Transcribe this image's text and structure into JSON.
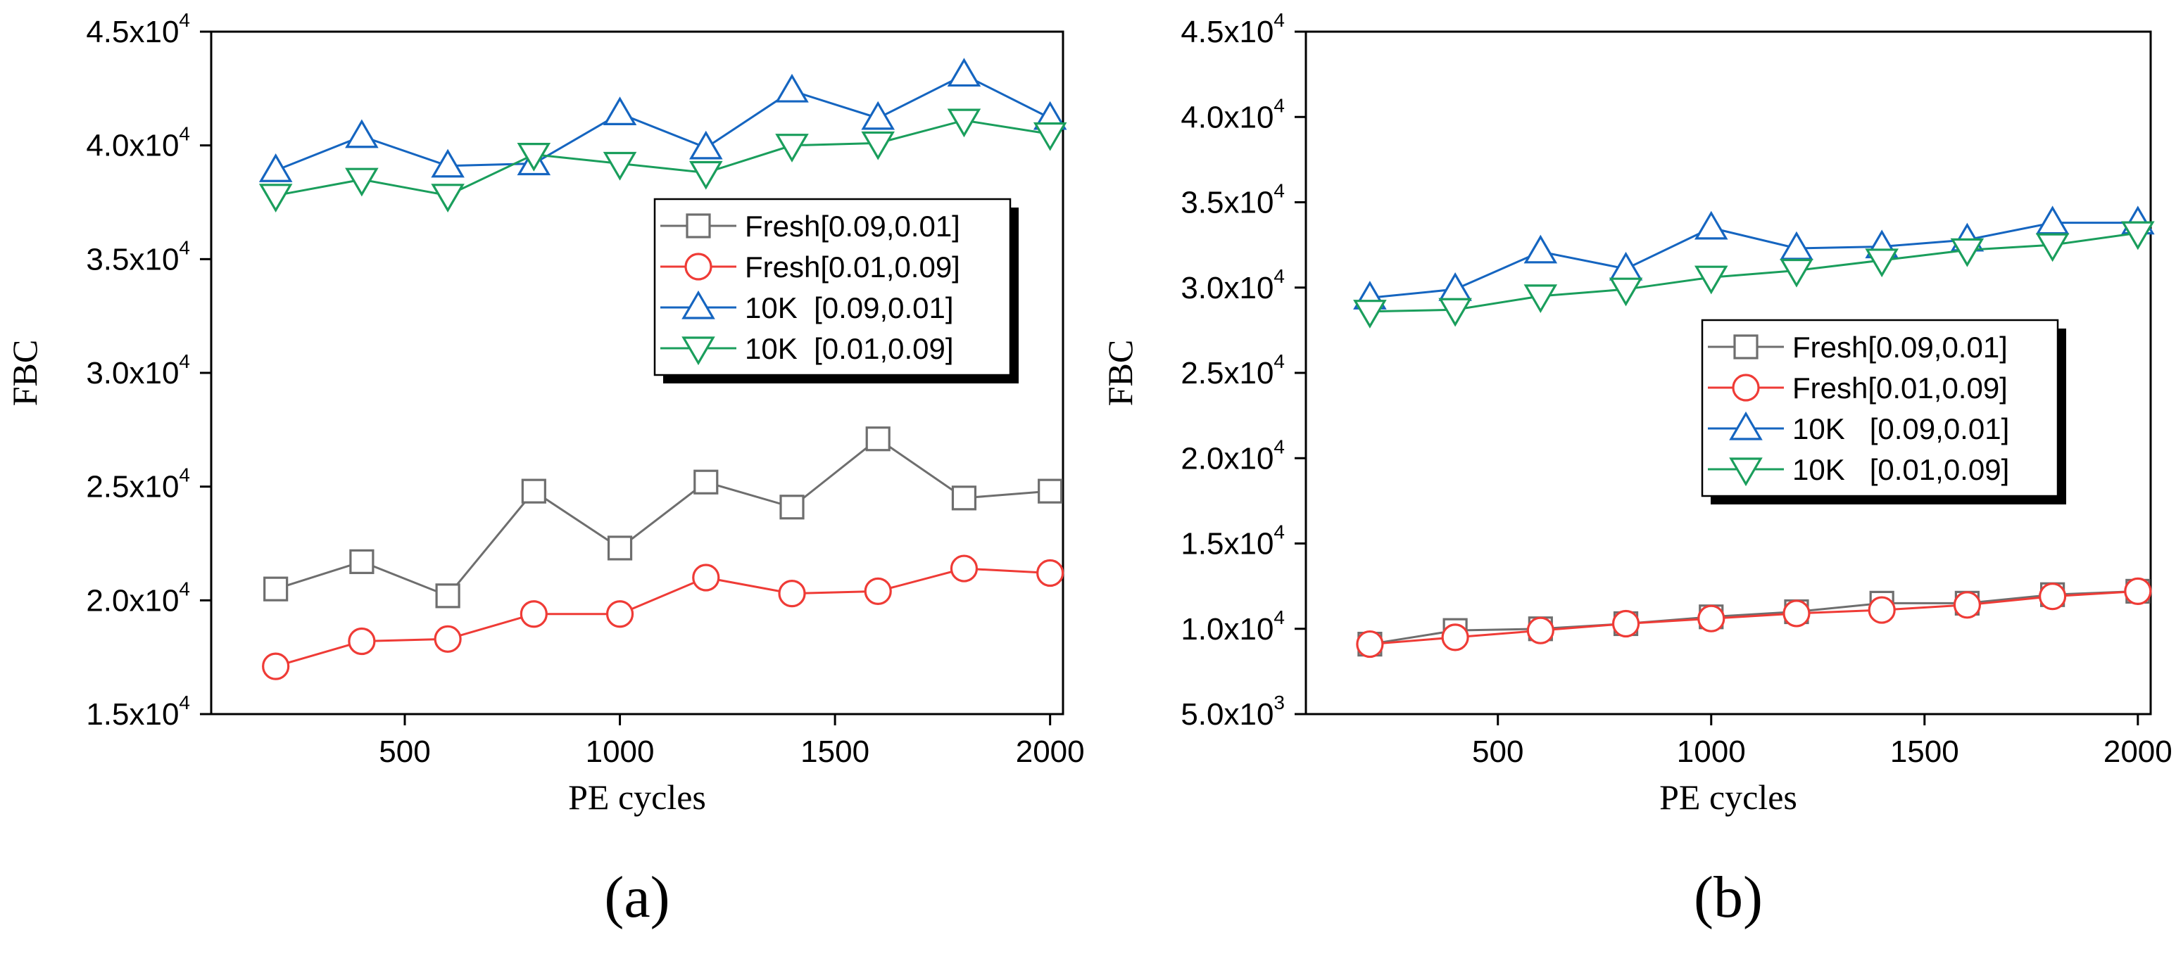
{
  "chart_data": [
    {
      "type": "line",
      "panel_label": "(a)",
      "xlabel": "PE cycles",
      "ylabel": "FBC",
      "xlim": [
        50,
        2030
      ],
      "ylim": [
        15000,
        45000
      ],
      "xticks": [
        500,
        1000,
        1500,
        2000
      ],
      "yticks": [
        {
          "value": 15000,
          "mantissa": "1.5",
          "exp": "4"
        },
        {
          "value": 20000,
          "mantissa": "2.0",
          "exp": "4"
        },
        {
          "value": 25000,
          "mantissa": "2.5",
          "exp": "4"
        },
        {
          "value": 30000,
          "mantissa": "3.0",
          "exp": "4"
        },
        {
          "value": 35000,
          "mantissa": "3.5",
          "exp": "4"
        },
        {
          "value": 40000,
          "mantissa": "4.0",
          "exp": "4"
        },
        {
          "value": 45000,
          "mantissa": "4.5",
          "exp": "4"
        }
      ],
      "legend_position": "center-right",
      "x": [
        200,
        400,
        600,
        800,
        1000,
        1200,
        1400,
        1600,
        1800,
        2000
      ],
      "series": [
        {
          "name": "Fresh[0.09,0.01]",
          "color": "#6e6e6e",
          "marker": "square",
          "values": [
            20500,
            21700,
            20200,
            24800,
            22300,
            25200,
            24100,
            27100,
            24500,
            24800
          ]
        },
        {
          "name": "Fresh[0.01,0.09]",
          "color": "#ef3b36",
          "marker": "circle",
          "values": [
            17100,
            18200,
            18300,
            19400,
            19400,
            21000,
            20300,
            20400,
            21400,
            21200
          ]
        },
        {
          "name": "10K  [0.09,0.01]",
          "color": "#1565c0",
          "marker": "triangle-up",
          "values": [
            38900,
            40400,
            39100,
            39200,
            41400,
            39900,
            42400,
            41200,
            43100,
            41200
          ]
        },
        {
          "name": "10K  [0.01,0.09]",
          "color": "#1a9e5c",
          "marker": "triangle-down",
          "values": [
            37800,
            38500,
            37800,
            39600,
            39200,
            38800,
            40000,
            40100,
            41100,
            40500
          ]
        }
      ]
    },
    {
      "type": "line",
      "panel_label": "(b)",
      "xlabel": "PE cycles",
      "ylabel": "FBC",
      "xlim": [
        50,
        2030
      ],
      "ylim": [
        5000,
        45000
      ],
      "xticks": [
        500,
        1000,
        1500,
        2000
      ],
      "yticks": [
        {
          "value": 5000,
          "mantissa": "5.0",
          "exp": "3"
        },
        {
          "value": 10000,
          "mantissa": "1.0",
          "exp": "4"
        },
        {
          "value": 15000,
          "mantissa": "1.5",
          "exp": "4"
        },
        {
          "value": 20000,
          "mantissa": "2.0",
          "exp": "4"
        },
        {
          "value": 25000,
          "mantissa": "2.5",
          "exp": "4"
        },
        {
          "value": 30000,
          "mantissa": "3.0",
          "exp": "4"
        },
        {
          "value": 35000,
          "mantissa": "3.5",
          "exp": "4"
        },
        {
          "value": 40000,
          "mantissa": "4.0",
          "exp": "4"
        },
        {
          "value": 45000,
          "mantissa": "4.5",
          "exp": "4"
        }
      ],
      "legend_position": "center-right",
      "x": [
        200,
        400,
        600,
        800,
        1000,
        1200,
        1400,
        1600,
        1800,
        2000
      ],
      "series": [
        {
          "name": "Fresh[0.09,0.01]",
          "color": "#6e6e6e",
          "marker": "square",
          "values": [
            9100,
            9900,
            10000,
            10300,
            10700,
            11000,
            11500,
            11500,
            12000,
            12200
          ]
        },
        {
          "name": "Fresh[0.01,0.09]",
          "color": "#ef3b36",
          "marker": "circle",
          "values": [
            9100,
            9500,
            9900,
            10300,
            10600,
            10900,
            11100,
            11400,
            11900,
            12200
          ]
        },
        {
          "name": "10K   [0.09,0.01]",
          "color": "#1565c0",
          "marker": "triangle-up",
          "values": [
            29400,
            29900,
            32100,
            31100,
            33500,
            32300,
            32400,
            32800,
            33800,
            33800
          ]
        },
        {
          "name": "10K   [0.01,0.09]",
          "color": "#1a9e5c",
          "marker": "triangle-down",
          "values": [
            28600,
            28700,
            29500,
            29900,
            30600,
            31000,
            31600,
            32200,
            32500,
            33200
          ]
        }
      ]
    }
  ]
}
